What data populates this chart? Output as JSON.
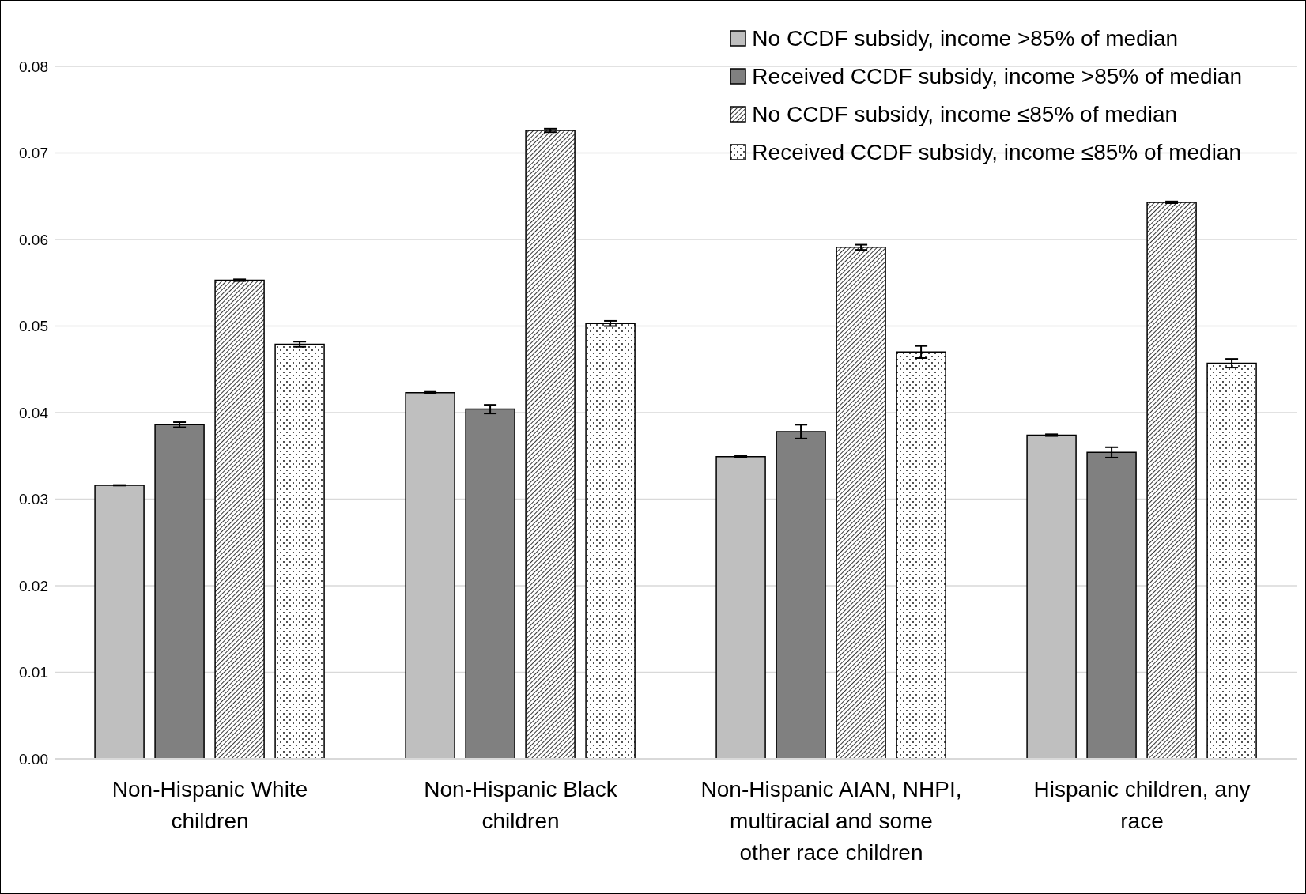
{
  "chart_data": {
    "type": "bar",
    "categories": [
      "Non-Hispanic White children",
      "Non-Hispanic Black children",
      "Non-Hispanic AIAN, NHPI, multiracial and some other race children",
      "Hispanic children, any race"
    ],
    "series": [
      {
        "name": "No CCDF subsidy, income >85% of median",
        "color": "#bfbfbf",
        "values": [
          0.0316,
          0.0423,
          0.0349,
          0.0374
        ],
        "errors": [
          3e-05,
          0.0001,
          0.0001,
          0.0001
        ]
      },
      {
        "name": "Received CCDF subsidy, income >85% of median",
        "color": "#808080",
        "values": [
          0.0386,
          0.0404,
          0.0378,
          0.0354
        ],
        "errors": [
          0.0003,
          0.0005,
          0.0008,
          0.0006
        ]
      },
      {
        "name": "No CCDF subsidy, income ≤85% of median",
        "color": "#000000",
        "values": [
          0.0553,
          0.0726,
          0.0591,
          0.0643
        ],
        "errors": [
          0.0001,
          0.0002,
          0.0003,
          0.0001
        ]
      },
      {
        "name": "Received CCDF subsidy, income ≤85% of median",
        "color": "#000000",
        "values": [
          0.0479,
          0.0503,
          0.047,
          0.0457
        ],
        "errors": [
          0.0003,
          0.0003,
          0.0007,
          0.0005
        ]
      }
    ],
    "ylim": [
      0,
      0.08
    ],
    "yticks": [
      {
        "value": 0,
        "label": "0.00"
      },
      0.01,
      0.02,
      0.03,
      0.04,
      0.05,
      0.06,
      0.07,
      0.08
    ],
    "grid": "y",
    "legend": "top right"
  }
}
